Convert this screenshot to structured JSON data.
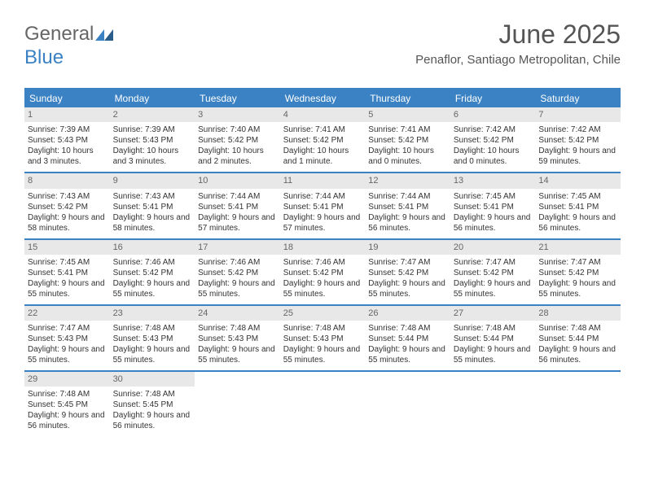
{
  "logo": {
    "text1": "General",
    "text2": "Blue"
  },
  "header": {
    "title": "June 2025",
    "subtitle": "Penaflor, Santiago Metropolitan, Chile"
  },
  "colors": {
    "accent": "#3b82c4",
    "daynum_bg": "#e8e8e8",
    "text": "#333333",
    "muted": "#666666"
  },
  "calendar": {
    "type": "table",
    "day_labels": [
      "Sunday",
      "Monday",
      "Tuesday",
      "Wednesday",
      "Thursday",
      "Friday",
      "Saturday"
    ],
    "leading_blank": 0,
    "days": [
      {
        "n": 1,
        "sunrise": "7:39 AM",
        "sunset": "5:43 PM",
        "daylight": "10 hours and 3 minutes."
      },
      {
        "n": 2,
        "sunrise": "7:39 AM",
        "sunset": "5:43 PM",
        "daylight": "10 hours and 3 minutes."
      },
      {
        "n": 3,
        "sunrise": "7:40 AM",
        "sunset": "5:42 PM",
        "daylight": "10 hours and 2 minutes."
      },
      {
        "n": 4,
        "sunrise": "7:41 AM",
        "sunset": "5:42 PM",
        "daylight": "10 hours and 1 minute."
      },
      {
        "n": 5,
        "sunrise": "7:41 AM",
        "sunset": "5:42 PM",
        "daylight": "10 hours and 0 minutes."
      },
      {
        "n": 6,
        "sunrise": "7:42 AM",
        "sunset": "5:42 PM",
        "daylight": "10 hours and 0 minutes."
      },
      {
        "n": 7,
        "sunrise": "7:42 AM",
        "sunset": "5:42 PM",
        "daylight": "9 hours and 59 minutes."
      },
      {
        "n": 8,
        "sunrise": "7:43 AM",
        "sunset": "5:42 PM",
        "daylight": "9 hours and 58 minutes."
      },
      {
        "n": 9,
        "sunrise": "7:43 AM",
        "sunset": "5:41 PM",
        "daylight": "9 hours and 58 minutes."
      },
      {
        "n": 10,
        "sunrise": "7:44 AM",
        "sunset": "5:41 PM",
        "daylight": "9 hours and 57 minutes."
      },
      {
        "n": 11,
        "sunrise": "7:44 AM",
        "sunset": "5:41 PM",
        "daylight": "9 hours and 57 minutes."
      },
      {
        "n": 12,
        "sunrise": "7:44 AM",
        "sunset": "5:41 PM",
        "daylight": "9 hours and 56 minutes."
      },
      {
        "n": 13,
        "sunrise": "7:45 AM",
        "sunset": "5:41 PM",
        "daylight": "9 hours and 56 minutes."
      },
      {
        "n": 14,
        "sunrise": "7:45 AM",
        "sunset": "5:41 PM",
        "daylight": "9 hours and 56 minutes."
      },
      {
        "n": 15,
        "sunrise": "7:45 AM",
        "sunset": "5:41 PM",
        "daylight": "9 hours and 55 minutes."
      },
      {
        "n": 16,
        "sunrise": "7:46 AM",
        "sunset": "5:42 PM",
        "daylight": "9 hours and 55 minutes."
      },
      {
        "n": 17,
        "sunrise": "7:46 AM",
        "sunset": "5:42 PM",
        "daylight": "9 hours and 55 minutes."
      },
      {
        "n": 18,
        "sunrise": "7:46 AM",
        "sunset": "5:42 PM",
        "daylight": "9 hours and 55 minutes."
      },
      {
        "n": 19,
        "sunrise": "7:47 AM",
        "sunset": "5:42 PM",
        "daylight": "9 hours and 55 minutes."
      },
      {
        "n": 20,
        "sunrise": "7:47 AM",
        "sunset": "5:42 PM",
        "daylight": "9 hours and 55 minutes."
      },
      {
        "n": 21,
        "sunrise": "7:47 AM",
        "sunset": "5:42 PM",
        "daylight": "9 hours and 55 minutes."
      },
      {
        "n": 22,
        "sunrise": "7:47 AM",
        "sunset": "5:43 PM",
        "daylight": "9 hours and 55 minutes."
      },
      {
        "n": 23,
        "sunrise": "7:48 AM",
        "sunset": "5:43 PM",
        "daylight": "9 hours and 55 minutes."
      },
      {
        "n": 24,
        "sunrise": "7:48 AM",
        "sunset": "5:43 PM",
        "daylight": "9 hours and 55 minutes."
      },
      {
        "n": 25,
        "sunrise": "7:48 AM",
        "sunset": "5:43 PM",
        "daylight": "9 hours and 55 minutes."
      },
      {
        "n": 26,
        "sunrise": "7:48 AM",
        "sunset": "5:44 PM",
        "daylight": "9 hours and 55 minutes."
      },
      {
        "n": 27,
        "sunrise": "7:48 AM",
        "sunset": "5:44 PM",
        "daylight": "9 hours and 55 minutes."
      },
      {
        "n": 28,
        "sunrise": "7:48 AM",
        "sunset": "5:44 PM",
        "daylight": "9 hours and 56 minutes."
      },
      {
        "n": 29,
        "sunrise": "7:48 AM",
        "sunset": "5:45 PM",
        "daylight": "9 hours and 56 minutes."
      },
      {
        "n": 30,
        "sunrise": "7:48 AM",
        "sunset": "5:45 PM",
        "daylight": "9 hours and 56 minutes."
      }
    ],
    "labels": {
      "sunrise": "Sunrise:",
      "sunset": "Sunset:",
      "daylight": "Daylight:"
    }
  }
}
